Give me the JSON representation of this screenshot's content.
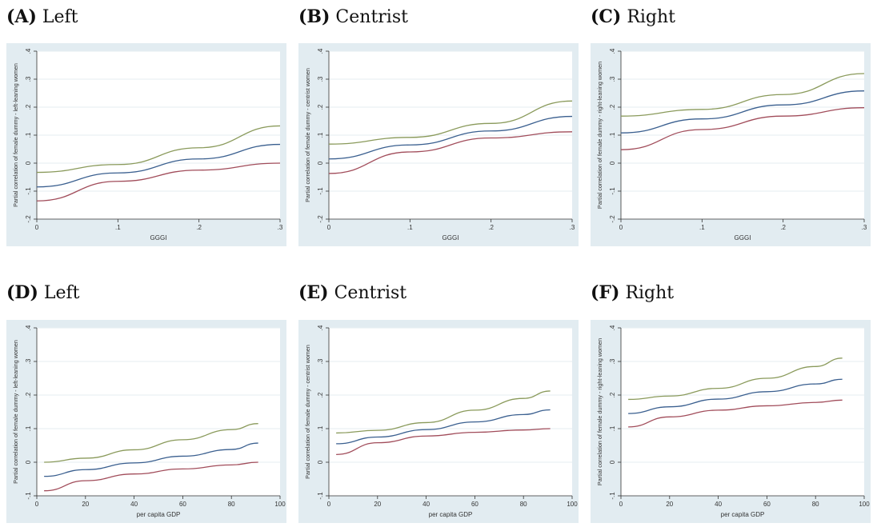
{
  "panels": [
    {
      "letter": "(A)",
      "title": "Left"
    },
    {
      "letter": "(B)",
      "title": "Centrist"
    },
    {
      "letter": "(C)",
      "title": "Right"
    },
    {
      "letter": "(D)",
      "title": "Left"
    },
    {
      "letter": "(E)",
      "title": "Centrist"
    },
    {
      "letter": "(F)",
      "title": "Right"
    }
  ],
  "chart_data": [
    {
      "type": "line",
      "xlabel": "GGGI",
      "ylabel": "Partial correlation of female dummy - left-leaning women",
      "xlim": [
        0,
        0.3
      ],
      "ylim": [
        -0.2,
        0.4
      ],
      "xticks": [
        "0",
        ".1",
        ".2",
        ".3"
      ],
      "yticks": [
        "-.2",
        "-.1",
        "0",
        ".1",
        ".2",
        ".3",
        ".4"
      ],
      "x": [
        0,
        0.1,
        0.2,
        0.3
      ],
      "series": [
        {
          "values": [
            -0.033,
            -0.005,
            0.055,
            0.133
          ],
          "color": "#8a9a5b"
        },
        {
          "values": [
            -0.085,
            -0.035,
            0.015,
            0.067
          ],
          "color": "#3a5f8f"
        },
        {
          "values": [
            -0.135,
            -0.065,
            -0.025,
            0.0
          ],
          "color": "#a14c5a"
        }
      ]
    },
    {
      "type": "line",
      "xlabel": "GGGI",
      "ylabel": "Partial correlation of female dummy - centrist women",
      "xlim": [
        0,
        0.3
      ],
      "ylim": [
        -0.2,
        0.4
      ],
      "xticks": [
        "0",
        ".1",
        ".2",
        ".3"
      ],
      "yticks": [
        "-.2",
        "-.1",
        "0",
        ".1",
        ".2",
        ".3",
        ".4"
      ],
      "x": [
        0,
        0.1,
        0.2,
        0.3
      ],
      "series": [
        {
          "values": [
            0.068,
            0.092,
            0.142,
            0.222
          ],
          "color": "#8a9a5b"
        },
        {
          "values": [
            0.015,
            0.065,
            0.115,
            0.167
          ],
          "color": "#3a5f8f"
        },
        {
          "values": [
            -0.037,
            0.04,
            0.09,
            0.112
          ],
          "color": "#a14c5a"
        }
      ]
    },
    {
      "type": "line",
      "xlabel": "GGGI",
      "ylabel": "Partial correlation of female dummy - right-leaning women",
      "xlim": [
        0,
        0.3
      ],
      "ylim": [
        -0.2,
        0.4
      ],
      "xticks": [
        "0",
        ".1",
        ".2",
        ".3"
      ],
      "yticks": [
        "-.2",
        "-.1",
        "0",
        ".1",
        ".2",
        ".3",
        ".4"
      ],
      "x": [
        0,
        0.1,
        0.2,
        0.3
      ],
      "series": [
        {
          "values": [
            0.168,
            0.192,
            0.245,
            0.32
          ],
          "color": "#8a9a5b"
        },
        {
          "values": [
            0.108,
            0.158,
            0.208,
            0.258
          ],
          "color": "#3a5f8f"
        },
        {
          "values": [
            0.048,
            0.12,
            0.168,
            0.198
          ],
          "color": "#a14c5a"
        }
      ]
    },
    {
      "type": "line",
      "xlabel": "per capita GDP",
      "ylabel": "Partial correlation of female dummy - left-leaning women",
      "xlim": [
        0,
        100
      ],
      "ylim": [
        -0.1,
        0.4
      ],
      "xticks": [
        "0",
        "20",
        "40",
        "60",
        "80",
        "100"
      ],
      "yticks": [
        "-.1",
        "0",
        ".1",
        ".2",
        ".3",
        ".4"
      ],
      "x": [
        3,
        20,
        40,
        60,
        80,
        91
      ],
      "series": [
        {
          "values": [
            0.0,
            0.012,
            0.037,
            0.067,
            0.097,
            0.115
          ],
          "color": "#8a9a5b"
        },
        {
          "values": [
            -0.042,
            -0.022,
            -0.002,
            0.018,
            0.038,
            0.057
          ],
          "color": "#3a5f8f"
        },
        {
          "values": [
            -0.085,
            -0.055,
            -0.035,
            -0.02,
            -0.008,
            0.0
          ],
          "color": "#a14c5a"
        }
      ]
    },
    {
      "type": "line",
      "xlabel": "per capita GDP",
      "ylabel": "Partial correlation of female dummy - centrist women",
      "xlim": [
        0,
        100
      ],
      "ylim": [
        -0.1,
        0.4
      ],
      "xticks": [
        "0",
        "20",
        "40",
        "60",
        "80",
        "100"
      ],
      "yticks": [
        "-.1",
        "0",
        ".1",
        ".2",
        ".3",
        ".4"
      ],
      "x": [
        3,
        20,
        40,
        60,
        80,
        91
      ],
      "series": [
        {
          "values": [
            0.087,
            0.095,
            0.118,
            0.155,
            0.19,
            0.212
          ],
          "color": "#8a9a5b"
        },
        {
          "values": [
            0.055,
            0.075,
            0.097,
            0.12,
            0.142,
            0.156
          ],
          "color": "#3a5f8f"
        },
        {
          "values": [
            0.023,
            0.058,
            0.078,
            0.089,
            0.096,
            0.1
          ],
          "color": "#a14c5a"
        }
      ]
    },
    {
      "type": "line",
      "xlabel": "per capita GDP",
      "ylabel": "Partial correlation of female dummy - right-leaning women",
      "xlim": [
        0,
        100
      ],
      "ylim": [
        -0.1,
        0.4
      ],
      "xticks": [
        "0",
        "20",
        "40",
        "60",
        "80",
        "100"
      ],
      "yticks": [
        "-.1",
        "0",
        ".1",
        ".2",
        ".3",
        ".4"
      ],
      "x": [
        3,
        20,
        40,
        60,
        80,
        91
      ],
      "series": [
        {
          "values": [
            0.187,
            0.197,
            0.22,
            0.25,
            0.285,
            0.31
          ],
          "color": "#8a9a5b"
        },
        {
          "values": [
            0.145,
            0.165,
            0.188,
            0.21,
            0.233,
            0.247
          ],
          "color": "#3a5f8f"
        },
        {
          "values": [
            0.105,
            0.135,
            0.155,
            0.168,
            0.178,
            0.185
          ],
          "color": "#a14c5a"
        }
      ]
    }
  ]
}
